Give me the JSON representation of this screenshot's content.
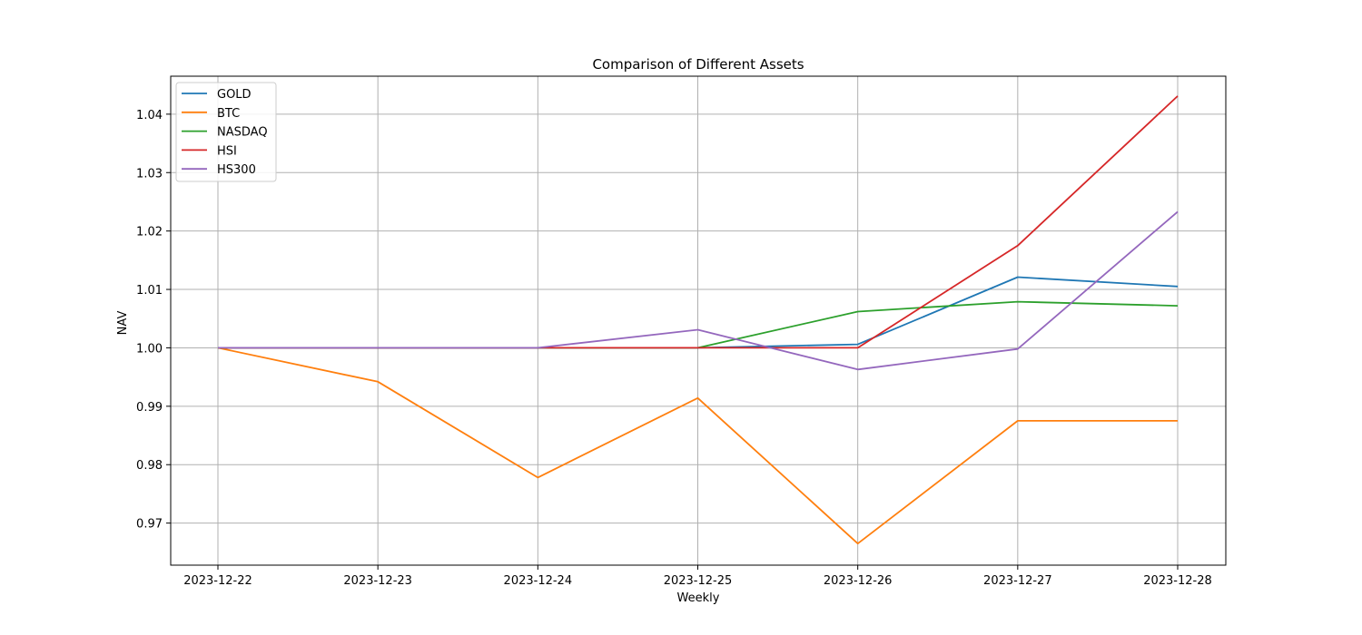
{
  "chart_data": {
    "type": "line",
    "title": "Comparison of Different Assets",
    "xlabel": "Weekly",
    "ylabel": "NAV",
    "x": [
      "2023-12-22",
      "2023-12-23",
      "2023-12-24",
      "2023-12-25",
      "2023-12-26",
      "2023-12-27",
      "2023-12-28"
    ],
    "ylim": [
      0.9628,
      1.0465
    ],
    "yticks": [
      "0.97",
      "0.98",
      "0.99",
      "1.00",
      "1.01",
      "1.02",
      "1.03",
      "1.04"
    ],
    "grid": true,
    "legend": "top-left",
    "series": [
      {
        "name": "GOLD",
        "color": "#1f77b4",
        "values": [
          1.0,
          1.0,
          1.0,
          1.0,
          1.0006,
          1.0121,
          1.0105
        ]
      },
      {
        "name": "BTC",
        "color": "#ff7f0e",
        "values": [
          1.0,
          0.9942,
          0.9778,
          0.9914,
          0.9665,
          0.9875,
          0.9875
        ]
      },
      {
        "name": "NASDAQ",
        "color": "#2ca02c",
        "values": [
          1.0,
          1.0,
          1.0,
          1.0,
          1.0062,
          1.0079,
          1.0072
        ]
      },
      {
        "name": "HSI",
        "color": "#d62728",
        "values": [
          1.0,
          1.0,
          1.0,
          1.0,
          1.0,
          1.0175,
          1.0431
        ]
      },
      {
        "name": "HS300",
        "color": "#9467bd",
        "values": [
          1.0,
          1.0,
          1.0,
          1.0031,
          0.9963,
          0.9998,
          1.0233
        ]
      }
    ]
  }
}
